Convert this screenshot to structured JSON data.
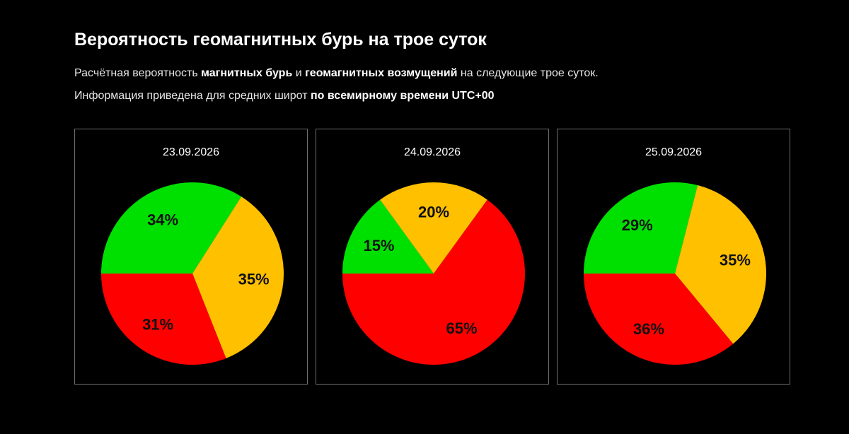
{
  "header": {
    "title": "Вероятность геомагнитных бурь на трое суток",
    "line1": {
      "t1": "Расчётная вероятность ",
      "b1": "магнитных бурь",
      "t2": " и ",
      "b2": "геомагнитных возмущений",
      "t3": " на следующие трое суток."
    },
    "line2": {
      "t1": "Информация приведена для средних широт ",
      "b1": "по всемирному времени UTC+00"
    }
  },
  "colors": {
    "green": "#00e000",
    "orange": "#ffc000",
    "red": "#ff0000"
  },
  "chart_data": [
    {
      "type": "pie",
      "title": "23.09.2026",
      "slices": [
        {
          "value": 34,
          "label": "34%",
          "color": "green"
        },
        {
          "value": 35,
          "label": "35%",
          "color": "orange"
        },
        {
          "value": 31,
          "label": "31%",
          "color": "red"
        }
      ]
    },
    {
      "type": "pie",
      "title": "24.09.2026",
      "slices": [
        {
          "value": 15,
          "label": "15%",
          "color": "green"
        },
        {
          "value": 20,
          "label": "20%",
          "color": "orange"
        },
        {
          "value": 65,
          "label": "65%",
          "color": "red"
        }
      ]
    },
    {
      "type": "pie",
      "title": "25.09.2026",
      "slices": [
        {
          "value": 29,
          "label": "29%",
          "color": "green"
        },
        {
          "value": 35,
          "label": "35%",
          "color": "orange"
        },
        {
          "value": 36,
          "label": "36%",
          "color": "red"
        }
      ]
    }
  ]
}
